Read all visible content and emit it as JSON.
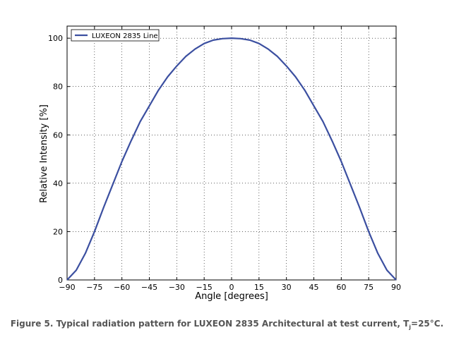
{
  "chart_data": {
    "type": "line",
    "title": "",
    "xlabel": "Angle [degrees]",
    "ylabel": "Relative Intensity [%]",
    "xlim": [
      -90,
      90
    ],
    "ylim": [
      0,
      105
    ],
    "x_ticks": [
      "−90",
      "−75",
      "−60",
      "−45",
      "−30",
      "−15",
      "0",
      "15",
      "30",
      "45",
      "60",
      "75",
      "90"
    ],
    "y_ticks": [
      "0",
      "20",
      "40",
      "60",
      "80",
      "100"
    ],
    "grid": true,
    "legend_position": "top-left",
    "series": [
      {
        "name": "LUXEON 2835 Line",
        "color": "#3b4fa0",
        "x": [
          -90,
          -85,
          -80,
          -75,
          -70,
          -65,
          -60,
          -55,
          -50,
          -45,
          -40,
          -35,
          -30,
          -25,
          -20,
          -15,
          -10,
          -5,
          0,
          5,
          10,
          15,
          20,
          25,
          30,
          35,
          40,
          45,
          50,
          55,
          60,
          65,
          70,
          75,
          80,
          85,
          90
        ],
        "y": [
          0,
          4,
          11,
          20,
          30,
          39.5,
          49,
          57.5,
          65.5,
          72,
          78.5,
          84,
          88.5,
          92.5,
          95.5,
          97.8,
          99.2,
          99.8,
          100,
          99.8,
          99.2,
          97.8,
          95.5,
          92.5,
          88.5,
          84,
          78.5,
          72,
          65.5,
          57.5,
          49,
          39.5,
          30,
          20,
          11,
          4,
          0
        ]
      }
    ]
  },
  "caption": {
    "prefix": "Figure 5. Typical radiation pattern for LUXEON 2835 Architectural at test current, T",
    "subscript": "j",
    "suffix": "=25°C."
  }
}
